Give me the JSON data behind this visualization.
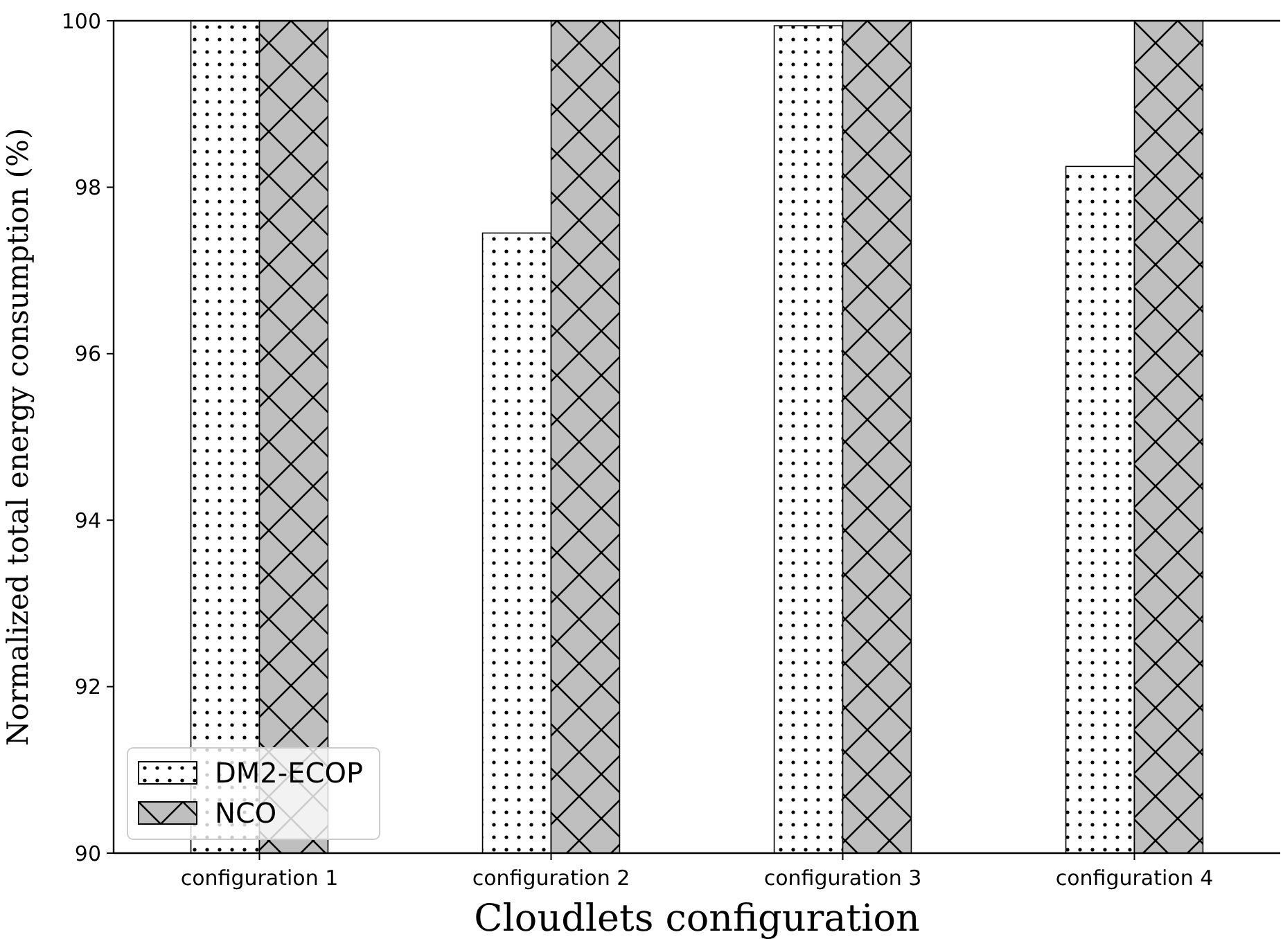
{
  "chart_data": {
    "type": "bar",
    "xlabel": "Cloudlets configuration",
    "ylabel": "Normalized total energy consumption (%)",
    "categories": [
      "configuration 1",
      "configuration 2",
      "configuration 3",
      "configuration 4"
    ],
    "series": [
      {
        "name": "DM2-ECOP",
        "color": "#ffffff",
        "values": [
          100,
          97.45,
          99.94,
          98.25
        ]
      },
      {
        "name": "NCO",
        "color": "#bfbfbf",
        "values": [
          100,
          100,
          100,
          100
        ]
      }
    ],
    "ylim": [
      90,
      100
    ],
    "yticks": [
      90,
      92,
      94,
      96,
      98,
      100
    ],
    "legend": "bottom left",
    "grid": false
  }
}
